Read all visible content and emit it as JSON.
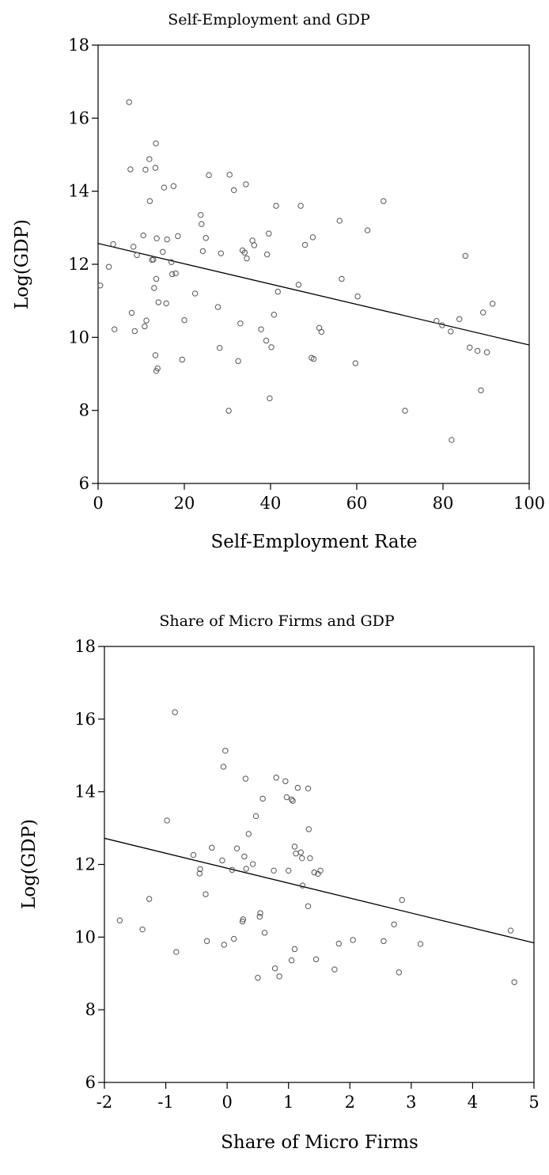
{
  "charts": [
    {
      "type": "scatter",
      "title": "Self-Employment and GDP",
      "xlabel": "Self-Employment Rate",
      "ylabel": "Log(GDP)",
      "xlim": [
        0,
        100
      ],
      "ylim": [
        6,
        18
      ],
      "xticks": [
        0,
        20,
        40,
        60,
        80,
        100
      ],
      "yticks": [
        6,
        8,
        10,
        12,
        14,
        16,
        18
      ],
      "xtick_labels": [
        "0",
        "20",
        "40",
        "60",
        "80",
        "100"
      ],
      "ytick_labels": [
        "6",
        "8",
        "10",
        "12",
        "14",
        "16",
        "18"
      ],
      "grid": false,
      "legend": "none",
      "fit_line": {
        "x": [
          0,
          100
        ],
        "y": [
          12.57,
          9.79
        ]
      },
      "points": [
        [
          0.5,
          11.42
        ],
        [
          2.5,
          11.93
        ],
        [
          3.5,
          12.55
        ],
        [
          3.8,
          10.22
        ],
        [
          7.2,
          16.44
        ],
        [
          7.5,
          14.6
        ],
        [
          7.8,
          10.67
        ],
        [
          8.2,
          12.48
        ],
        [
          8.5,
          10.17
        ],
        [
          9.0,
          12.25
        ],
        [
          10.5,
          12.79
        ],
        [
          10.8,
          10.3
        ],
        [
          11.0,
          14.59
        ],
        [
          11.2,
          10.46
        ],
        [
          11.9,
          14.88
        ],
        [
          12.0,
          13.73
        ],
        [
          12.5,
          12.12
        ],
        [
          12.8,
          12.13
        ],
        [
          13.0,
          11.35
        ],
        [
          13.3,
          14.64
        ],
        [
          13.4,
          15.31
        ],
        [
          13.5,
          11.6
        ],
        [
          13.6,
          12.71
        ],
        [
          13.3,
          9.51
        ],
        [
          13.5,
          9.08
        ],
        [
          13.8,
          9.15
        ],
        [
          14.0,
          10.96
        ],
        [
          15.0,
          12.34
        ],
        [
          15.3,
          14.1
        ],
        [
          15.8,
          10.93
        ],
        [
          16.0,
          12.68
        ],
        [
          17.0,
          12.06
        ],
        [
          17.2,
          11.73
        ],
        [
          17.5,
          14.14
        ],
        [
          18.0,
          11.75
        ],
        [
          18.5,
          12.77
        ],
        [
          19.5,
          9.39
        ],
        [
          20.0,
          10.47
        ],
        [
          22.5,
          11.2
        ],
        [
          23.8,
          13.35
        ],
        [
          24.0,
          13.1
        ],
        [
          24.3,
          12.36
        ],
        [
          25.0,
          12.72
        ],
        [
          25.7,
          14.44
        ],
        [
          27.8,
          10.83
        ],
        [
          28.2,
          9.71
        ],
        [
          28.5,
          12.3
        ],
        [
          30.3,
          7.99
        ],
        [
          30.5,
          14.45
        ],
        [
          31.5,
          14.03
        ],
        [
          32.5,
          9.35
        ],
        [
          33.0,
          10.38
        ],
        [
          33.5,
          12.38
        ],
        [
          34.0,
          12.32
        ],
        [
          34.5,
          12.16
        ],
        [
          34.3,
          14.19
        ],
        [
          35.8,
          12.65
        ],
        [
          36.2,
          12.52
        ],
        [
          37.8,
          10.22
        ],
        [
          39.0,
          9.91
        ],
        [
          39.2,
          12.27
        ],
        [
          39.6,
          12.84
        ],
        [
          39.8,
          8.33
        ],
        [
          40.2,
          9.73
        ],
        [
          40.8,
          10.62
        ],
        [
          41.3,
          13.6
        ],
        [
          41.7,
          11.25
        ],
        [
          46.5,
          11.44
        ],
        [
          47.0,
          13.6
        ],
        [
          48.0,
          12.53
        ],
        [
          49.5,
          9.44
        ],
        [
          49.8,
          12.74
        ],
        [
          50.0,
          9.41
        ],
        [
          51.3,
          10.26
        ],
        [
          51.8,
          10.15
        ],
        [
          56.0,
          13.19
        ],
        [
          56.5,
          11.6
        ],
        [
          59.7,
          9.29
        ],
        [
          60.2,
          11.12
        ],
        [
          62.5,
          12.93
        ],
        [
          66.2,
          13.73
        ],
        [
          71.2,
          7.99
        ],
        [
          78.5,
          10.45
        ],
        [
          79.8,
          10.33
        ],
        [
          81.8,
          10.16
        ],
        [
          82.0,
          7.19
        ],
        [
          83.8,
          10.5
        ],
        [
          85.2,
          12.23
        ],
        [
          86.2,
          9.72
        ],
        [
          88.0,
          9.63
        ],
        [
          88.8,
          8.55
        ],
        [
          89.3,
          10.68
        ],
        [
          90.2,
          9.59
        ],
        [
          91.5,
          10.92
        ]
      ]
    },
    {
      "type": "scatter",
      "title": "Share of Micro Firms and GDP",
      "xlabel": "Share of Micro Firms",
      "ylabel": "Log(GDP)",
      "xlim": [
        -2,
        5
      ],
      "ylim": [
        6,
        18
      ],
      "xticks": [
        -2,
        -1,
        0,
        1,
        2,
        3,
        4,
        5
      ],
      "yticks": [
        6,
        8,
        10,
        12,
        14,
        16,
        18
      ],
      "xtick_labels": [
        "-2",
        "-1",
        "0",
        "1",
        "2",
        "3",
        "4",
        "5"
      ],
      "ytick_labels": [
        "6",
        "8",
        "10",
        "12",
        "14",
        "16",
        "18"
      ],
      "grid": false,
      "legend": "none",
      "fit_line": {
        "x": [
          -2,
          5
        ],
        "y": [
          12.72,
          9.84
        ]
      },
      "points": [
        [
          -1.75,
          10.46
        ],
        [
          -1.38,
          10.21
        ],
        [
          -1.27,
          11.05
        ],
        [
          -0.98,
          13.21
        ],
        [
          -0.85,
          16.19
        ],
        [
          -0.83,
          9.59
        ],
        [
          -0.55,
          12.26
        ],
        [
          -0.45,
          11.75
        ],
        [
          -0.44,
          11.87
        ],
        [
          -0.35,
          11.18
        ],
        [
          -0.33,
          9.89
        ],
        [
          -0.25,
          12.46
        ],
        [
          -0.08,
          12.11
        ],
        [
          -0.06,
          14.69
        ],
        [
          -0.05,
          9.79
        ],
        [
          -0.03,
          15.13
        ],
        [
          0.08,
          11.85
        ],
        [
          0.11,
          9.95
        ],
        [
          0.16,
          12.44
        ],
        [
          0.25,
          10.43
        ],
        [
          0.26,
          10.49
        ],
        [
          0.28,
          12.22
        ],
        [
          0.3,
          14.36
        ],
        [
          0.31,
          11.88
        ],
        [
          0.35,
          12.84
        ],
        [
          0.42,
          12.01
        ],
        [
          0.47,
          13.33
        ],
        [
          0.5,
          8.88
        ],
        [
          0.53,
          10.56
        ],
        [
          0.54,
          10.66
        ],
        [
          0.58,
          13.81
        ],
        [
          0.61,
          10.12
        ],
        [
          0.76,
          11.83
        ],
        [
          0.78,
          9.14
        ],
        [
          0.8,
          14.39
        ],
        [
          0.85,
          8.92
        ],
        [
          0.95,
          14.29
        ],
        [
          0.97,
          13.85
        ],
        [
          1.0,
          11.83
        ],
        [
          1.05,
          9.36
        ],
        [
          1.05,
          13.79
        ],
        [
          1.07,
          13.75
        ],
        [
          1.1,
          12.49
        ],
        [
          1.1,
          9.67
        ],
        [
          1.12,
          12.3
        ],
        [
          1.15,
          14.11
        ],
        [
          1.2,
          12.33
        ],
        [
          1.22,
          12.17
        ],
        [
          1.23,
          11.42
        ],
        [
          1.32,
          14.09
        ],
        [
          1.32,
          10.85
        ],
        [
          1.33,
          12.97
        ],
        [
          1.35,
          12.17
        ],
        [
          1.42,
          11.78
        ],
        [
          1.45,
          9.39
        ],
        [
          1.48,
          11.74
        ],
        [
          1.52,
          11.83
        ],
        [
          1.75,
          9.11
        ],
        [
          1.82,
          9.82
        ],
        [
          2.05,
          9.92
        ],
        [
          2.55,
          9.89
        ],
        [
          2.72,
          10.35
        ],
        [
          2.8,
          9.03
        ],
        [
          2.85,
          11.02
        ],
        [
          3.15,
          9.81
        ],
        [
          4.62,
          10.18
        ],
        [
          4.68,
          8.76
        ]
      ]
    }
  ]
}
